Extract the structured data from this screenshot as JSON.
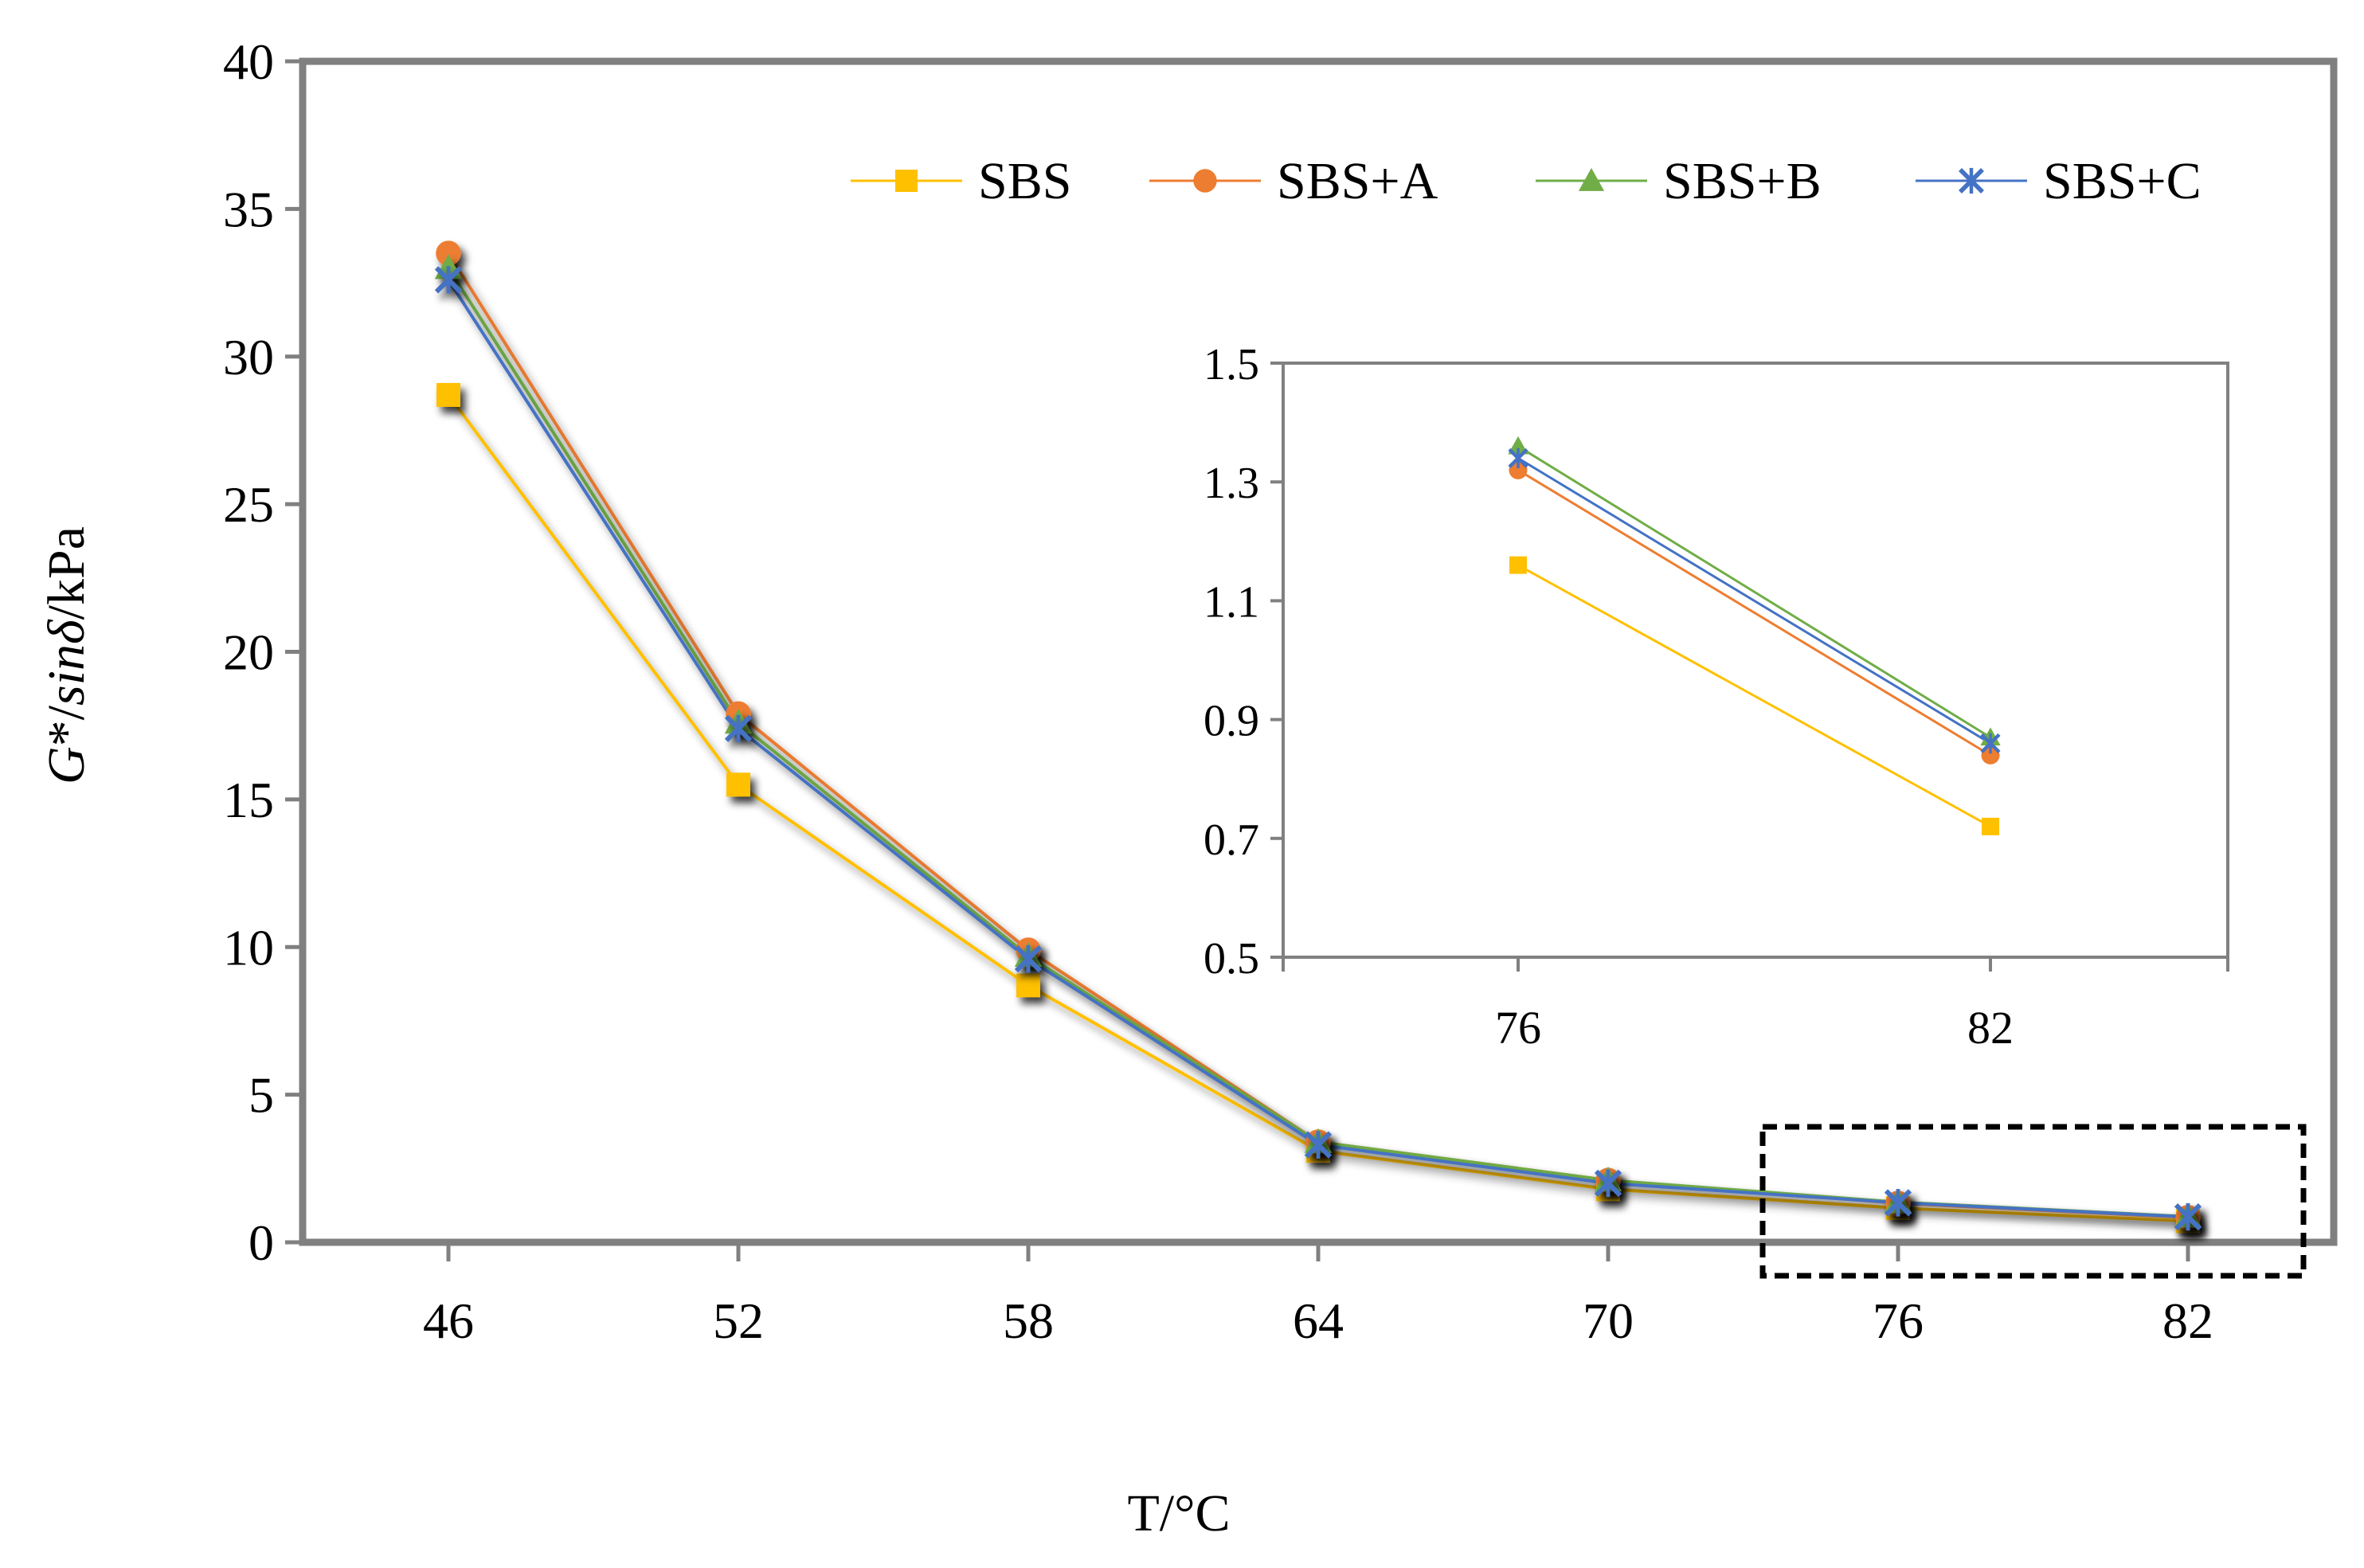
{
  "chart_data": [
    {
      "type": "line",
      "xlabel": "T/°C",
      "ylabel_parts": [
        {
          "text": "G",
          "italic": true
        },
        {
          "text": "*/",
          "italic": false
        },
        {
          "text": "sinδ",
          "italic": true
        },
        {
          "text": "/kPa",
          "italic": false
        }
      ],
      "categories": [
        "46",
        "52",
        "58",
        "64",
        "70",
        "76",
        "82"
      ],
      "ylim": [
        0,
        40
      ],
      "yticks": [
        "0",
        "5",
        "10",
        "15",
        "20",
        "25",
        "30",
        "35",
        "40"
      ],
      "legend": "top",
      "grid": false,
      "series": [
        {
          "name": "SBS",
          "color": "#FFC000",
          "marker": "square",
          "values": [
            28.7,
            15.5,
            8.7,
            3.1,
            1.8,
            1.16,
            0.72
          ]
        },
        {
          "name": "SBS+A",
          "color": "#ED7D31",
          "marker": "circle",
          "values": [
            33.5,
            17.9,
            9.9,
            3.4,
            2.1,
            1.32,
            0.84
          ]
        },
        {
          "name": "SBS+B",
          "color": "#70AD47",
          "marker": "triangle",
          "values": [
            33.0,
            17.6,
            9.7,
            3.4,
            2.1,
            1.36,
            0.87
          ]
        },
        {
          "name": "SBS+C",
          "color": "#4472C4",
          "marker": "star",
          "values": [
            32.6,
            17.4,
            9.6,
            3.3,
            2.0,
            1.34,
            0.86
          ]
        }
      ],
      "highlight_box_categories": [
        "76",
        "82"
      ]
    },
    {
      "type": "line",
      "role": "inset",
      "categories": [
        "76",
        "82"
      ],
      "ylim": [
        0.5,
        1.5
      ],
      "yticks": [
        "0.5",
        "0.7",
        "0.9",
        "1.1",
        "1.3",
        "1.5"
      ],
      "series": [
        {
          "name": "SBS",
          "color": "#FFC000",
          "marker": "square",
          "values": [
            1.16,
            0.72
          ]
        },
        {
          "name": "SBS+A",
          "color": "#ED7D31",
          "marker": "circle",
          "values": [
            1.32,
            0.84
          ]
        },
        {
          "name": "SBS+B",
          "color": "#70AD47",
          "marker": "triangle",
          "values": [
            1.36,
            0.87
          ]
        },
        {
          "name": "SBS+C",
          "color": "#4472C4",
          "marker": "star",
          "values": [
            1.34,
            0.86
          ]
        }
      ]
    }
  ]
}
